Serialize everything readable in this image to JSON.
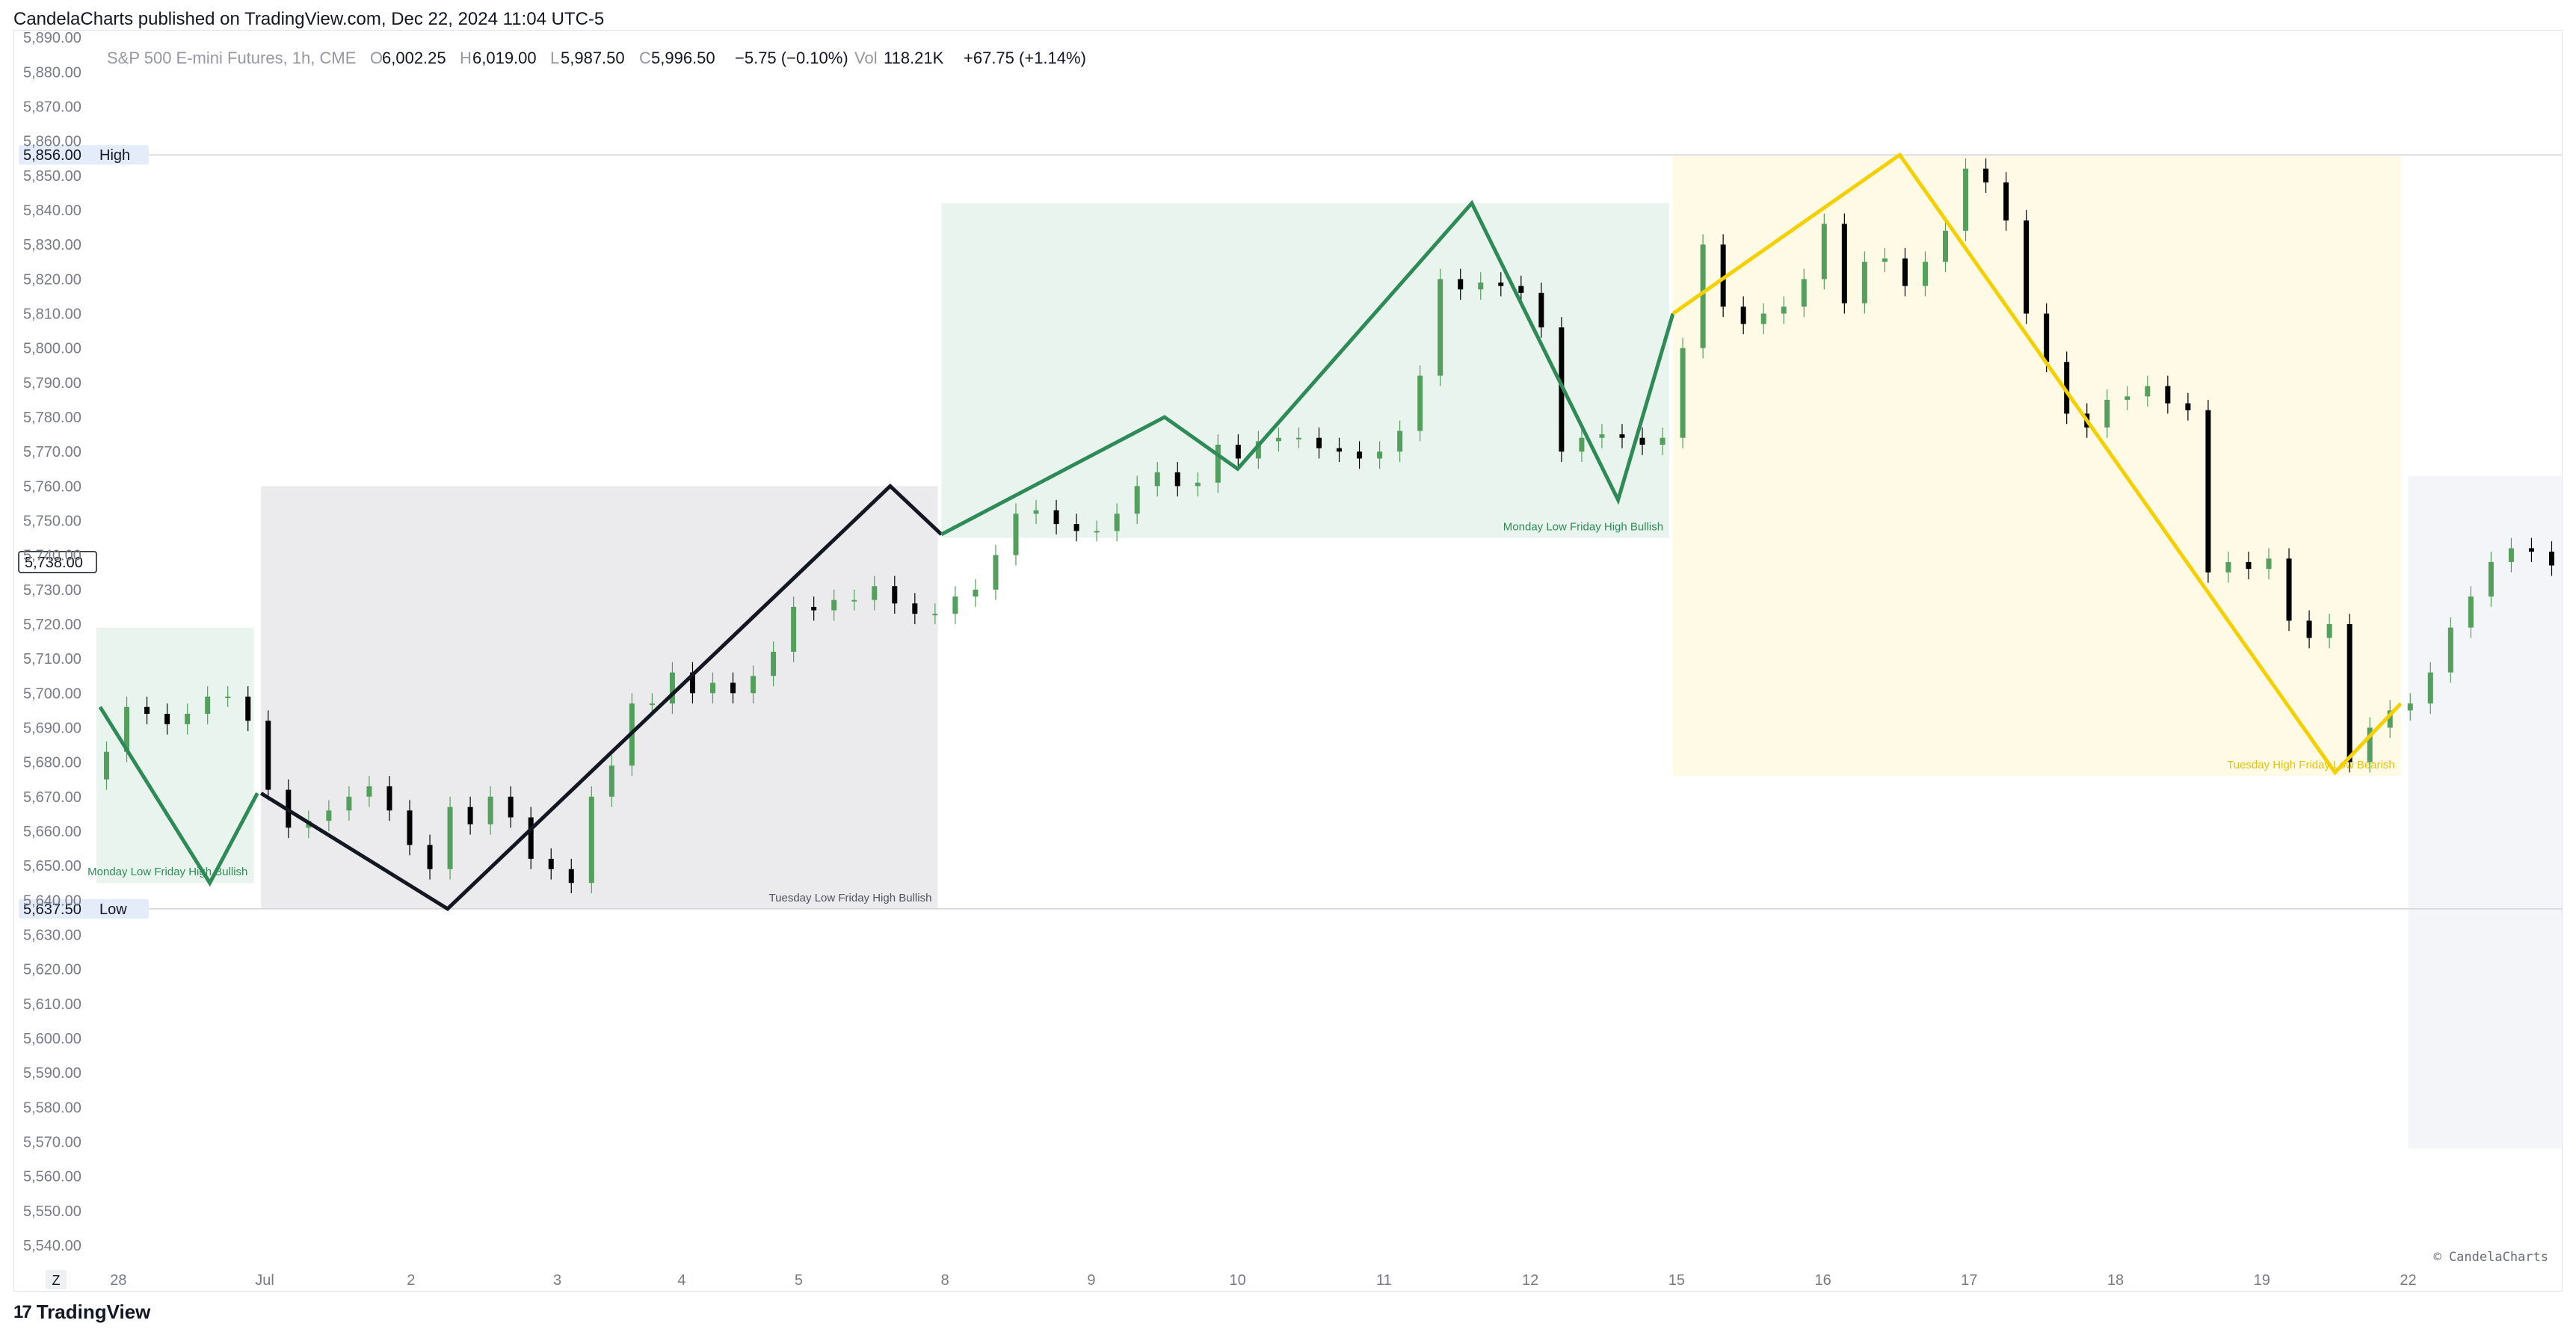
{
  "header": {
    "publish_line": "CandelaCharts published on TradingView.com, Dec 22, 2024 11:04 UTC-5"
  },
  "legend": {
    "symbol": "S&P 500 E-mini Futures, 1h, CME",
    "o_label": "O",
    "o_value": "6,002.25",
    "h_label": "H",
    "h_value": "6,019.00",
    "l_label": "L",
    "l_value": "5,987.50",
    "c_label": "C",
    "c_value": "5,996.50",
    "change": "−5.75 (−0.10%)",
    "vol_label": "Vol",
    "vol_value": "118.21K",
    "vol_change": "+67.75 (+1.14%)"
  },
  "footer": {
    "brand": "TradingView",
    "watermark": "© CandelaCharts",
    "tz_button": "Z"
  },
  "colors": {
    "green": "#2e8b57",
    "black": "#131722",
    "yellow": "#f5d000",
    "green_zone": "#eaf4ee",
    "gray_zone": "#ebebee",
    "yellow_zone": "#fefae6",
    "gray_zone_light": "#f4f5f8",
    "candle_up": "#549f5e",
    "candle_down": "#000000"
  },
  "chart_data": {
    "type": "candlestick",
    "title": "",
    "ylim": [
      5535,
      5892
    ],
    "y_ticks": [
      5540,
      5550,
      5560,
      5570,
      5580,
      5590,
      5600,
      5610,
      5620,
      5630,
      5640,
      5650,
      5660,
      5670,
      5680,
      5690,
      5700,
      5710,
      5720,
      5730,
      5740,
      5750,
      5760,
      5770,
      5780,
      5790,
      5800,
      5810,
      5820,
      5830,
      5840,
      5850,
      5860,
      5870,
      5880,
      5890
    ],
    "x_ticks": [
      {
        "label": "28",
        "x": 0.3
      },
      {
        "label": "Jul",
        "x": 2.3
      },
      {
        "label": "2",
        "x": 4.3
      },
      {
        "label": "3",
        "x": 6.3
      },
      {
        "label": "4",
        "x": 8.0
      },
      {
        "label": "5",
        "x": 9.6
      },
      {
        "label": "8",
        "x": 11.6
      },
      {
        "label": "9",
        "x": 13.6
      },
      {
        "label": "10",
        "x": 15.6
      },
      {
        "label": "11",
        "x": 17.6
      },
      {
        "label": "12",
        "x": 19.6
      },
      {
        "label": "15",
        "x": 21.6
      },
      {
        "label": "16",
        "x": 23.6
      },
      {
        "label": "17",
        "x": 25.6
      },
      {
        "label": "18",
        "x": 27.6
      },
      {
        "label": "19",
        "x": 29.6
      },
      {
        "label": "22",
        "x": 31.6
      }
    ],
    "xlim": [
      0,
      33.7
    ],
    "horizontal_levels": [
      {
        "name": "High",
        "value": 5856.0,
        "label": "5,856.00"
      },
      {
        "name": "Low",
        "value": 5637.5,
        "label": "5,637.50"
      }
    ],
    "current_price": {
      "value": 5738.0,
      "label": "5,738.00"
    },
    "zones": [
      {
        "label": "Monday Low Friday High Bullish",
        "x0": 0,
        "x1": 2.15,
        "y0": 5645,
        "y1": 5719,
        "theme": "green"
      },
      {
        "label": "Tuesday Low Friday High Bullish",
        "x0": 2.25,
        "x1": 11.5,
        "y0": 5637.5,
        "y1": 5760,
        "theme": "gray"
      },
      {
        "label": "Monday Low Friday High Bullish",
        "x0": 11.55,
        "x1": 21.5,
        "y0": 5745,
        "y1": 5842,
        "theme": "green"
      },
      {
        "label": "Tuesday High Friday Low Bearish",
        "x0": 21.55,
        "x1": 31.5,
        "y0": 5676,
        "y1": 5856,
        "theme": "yellow"
      },
      {
        "label": "",
        "x0": 31.6,
        "x1": 33.7,
        "y0": 5568,
        "y1": 5763,
        "theme": "gray_light"
      }
    ],
    "zigzags": [
      {
        "theme": "green",
        "points": [
          [
            0.05,
            5696
          ],
          [
            1.55,
            5645
          ],
          [
            2.2,
            5671
          ]
        ]
      },
      {
        "theme": "black",
        "points": [
          [
            2.25,
            5671
          ],
          [
            4.8,
            5637.5
          ],
          [
            10.85,
            5760
          ],
          [
            11.55,
            5746
          ]
        ]
      },
      {
        "theme": "green",
        "points": [
          [
            11.55,
            5746
          ],
          [
            14.6,
            5780
          ],
          [
            15.6,
            5765
          ],
          [
            18.8,
            5842
          ],
          [
            20.8,
            5756
          ],
          [
            21.55,
            5810
          ]
        ]
      },
      {
        "theme": "yellow",
        "points": [
          [
            21.55,
            5810
          ],
          [
            24.65,
            5856
          ],
          [
            30.6,
            5677
          ],
          [
            31.5,
            5697
          ]
        ]
      }
    ],
    "closes": [
      5683,
      5696,
      5694,
      5691,
      5694,
      5699,
      5699,
      5692,
      5672,
      5661,
      5663,
      5666,
      5670,
      5673,
      5666,
      5656,
      5649,
      5667,
      5662,
      5670,
      5664,
      5652,
      5649,
      5645,
      5670,
      5679,
      5697,
      5697,
      5706,
      5700,
      5703,
      5700,
      5705,
      5712,
      5725,
      5724,
      5727,
      5727,
      5731,
      5726,
      5723,
      5723,
      5728,
      5730,
      5740,
      5752,
      5753,
      5749,
      5747,
      5747,
      5752,
      5760,
      5764,
      5760,
      5761,
      5772,
      5768,
      5773,
      5774,
      5774,
      5771,
      5770,
      5768,
      5770,
      5776,
      5792,
      5820,
      5817,
      5819,
      5818,
      5816,
      5806,
      5770,
      5774,
      5775,
      5774,
      5772,
      5774,
      5800,
      5830,
      5812,
      5807,
      5810,
      5812,
      5820,
      5836,
      5813,
      5825,
      5826,
      5818,
      5825,
      5834,
      5852,
      5848,
      5837,
      5810,
      5796,
      5781,
      5777,
      5785,
      5786,
      5789,
      5784,
      5782,
      5735,
      5738,
      5736,
      5739,
      5721,
      5716,
      5720,
      5680,
      5690,
      5695,
      5697,
      5706,
      5719,
      5728,
      5738,
      5742,
      5741,
      5737
    ]
  }
}
